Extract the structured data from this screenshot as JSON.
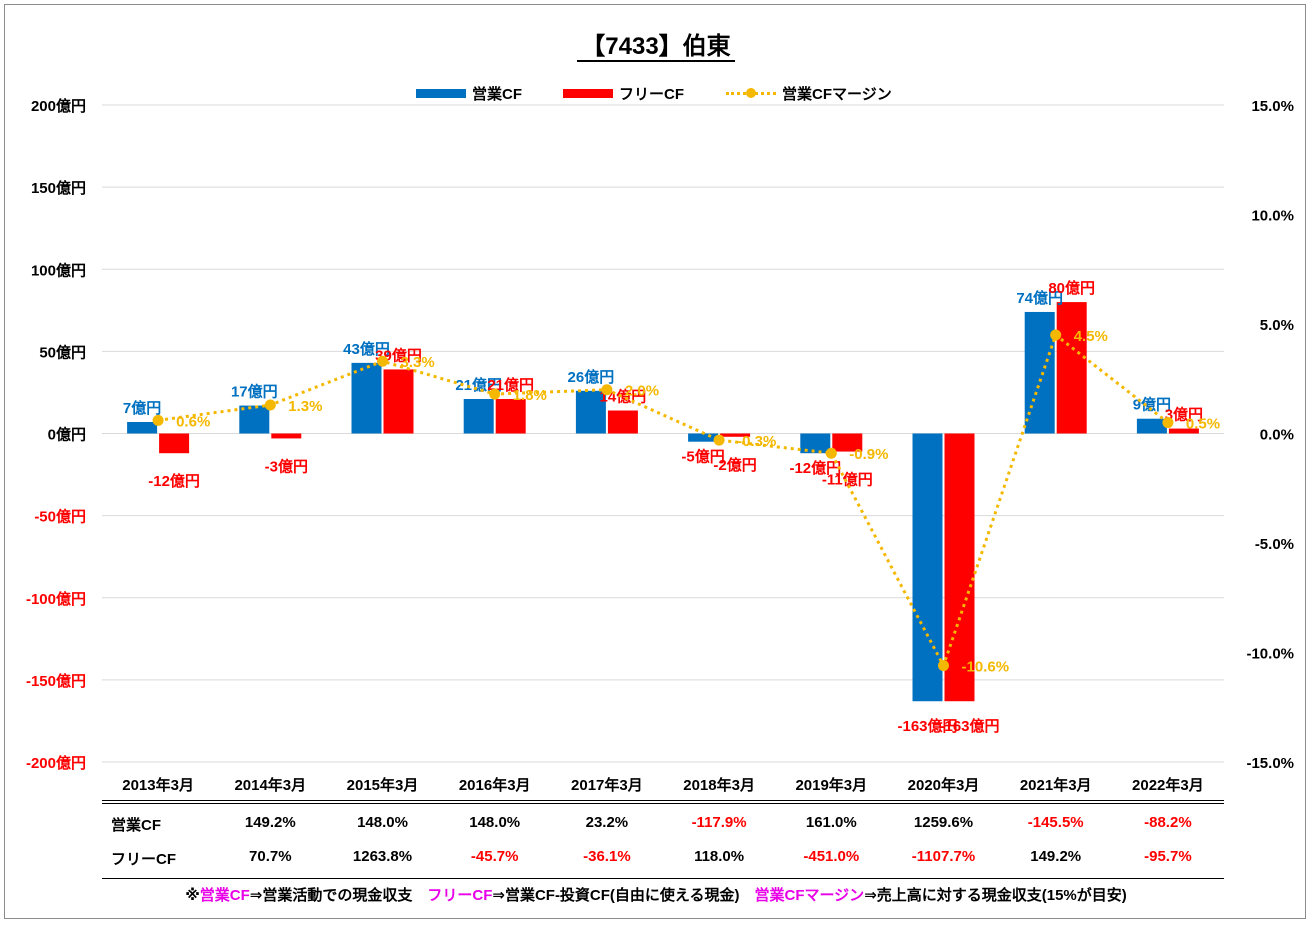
{
  "title": "【7433】伯東",
  "legend": [
    {
      "name": "営業CF",
      "color": "#0070c0",
      "kind": "bar"
    },
    {
      "name": "フリーCF",
      "color": "#ff0000",
      "kind": "bar"
    },
    {
      "name": "営業CFマージン",
      "color": "#f5b800",
      "kind": "dotted-line"
    }
  ],
  "chart_data": {
    "type": "bar",
    "categories": [
      "2013年3月",
      "2014年3月",
      "2015年3月",
      "2016年3月",
      "2017年3月",
      "2018年3月",
      "2019年3月",
      "2020年3月",
      "2021年3月",
      "2022年3月"
    ],
    "series": [
      {
        "name": "営業CF",
        "values": [
          7,
          17,
          43,
          21,
          26,
          -5,
          -12,
          -163,
          74,
          9
        ],
        "labels": [
          "7億円",
          "17億円",
          "43億円",
          "21億円",
          "26億円",
          "-5億円",
          "-12億円",
          "-163億円",
          "74億円",
          "9億円"
        ],
        "color": "#0070c0",
        "axis": "left"
      },
      {
        "name": "フリーCF",
        "values": [
          -12,
          -3,
          39,
          21,
          14,
          -2,
          -11,
          -163,
          80,
          3
        ],
        "labels": [
          "-12億円",
          "-3億円",
          "39億円",
          "21億円",
          "14億円",
          "-2億円",
          "-11億円",
          "-163億円",
          "80億円",
          "3億円"
        ],
        "color": "#ff0000",
        "axis": "left"
      },
      {
        "name": "営業CFマージン",
        "type": "line",
        "values": [
          0.6,
          1.3,
          3.3,
          1.8,
          2.0,
          -0.3,
          -0.9,
          -10.6,
          4.5,
          0.5
        ],
        "labels": [
          "0.6%",
          "1.3%",
          "3.3%",
          "1.8%",
          "2.0%",
          "-0.3%",
          "-0.9%",
          "-10.6%",
          "4.5%",
          "0.5%"
        ],
        "color": "#f5b800",
        "axis": "right"
      }
    ],
    "ylim": [
      -200,
      200
    ],
    "yticks": [
      200,
      150,
      100,
      50,
      0,
      -50,
      -100,
      -150,
      -200
    ],
    "ytick_labels": [
      "200億円",
      "150億円",
      "100億円",
      "50億円",
      "0億円",
      "-50億円",
      "-100億円",
      "-150億円",
      "-200億円"
    ],
    "y2lim": [
      -15,
      15
    ],
    "y2ticks": [
      15,
      10,
      5,
      0,
      -5,
      -10,
      -15
    ],
    "y2tick_labels": [
      "15.0%",
      "10.0%",
      "5.0%",
      "0.0%",
      "-5.0%",
      "-10.0%",
      "-15.0%"
    ],
    "grid": true,
    "legend_position": "top"
  },
  "table": {
    "rows": [
      {
        "label": "営業CF",
        "values": [
          "149.2%",
          "148.0%",
          "148.0%",
          "23.2%",
          "-117.9%",
          "161.0%",
          "1259.6%",
          "-145.5%",
          "-88.2%"
        ]
      },
      {
        "label": "フリーCF",
        "values": [
          "70.7%",
          "1263.8%",
          "-45.7%",
          "-36.1%",
          "118.0%",
          "-451.0%",
          "-1107.7%",
          "149.2%",
          "-95.7%"
        ]
      }
    ]
  },
  "footnote": {
    "prefix": "※",
    "t1": "営業CF",
    "d1": "⇒営業活動での現金収支　",
    "t2": "フリーCF",
    "d2": "⇒営業CF-投資CF(自由に使える現金)　",
    "t3": "営業CFマージン",
    "d3": "⇒売上高に対する現金収支(15%が目安)"
  },
  "colors": {
    "positive": "#000000",
    "negative": "#ff0000",
    "grid": "#d9d9d9"
  }
}
